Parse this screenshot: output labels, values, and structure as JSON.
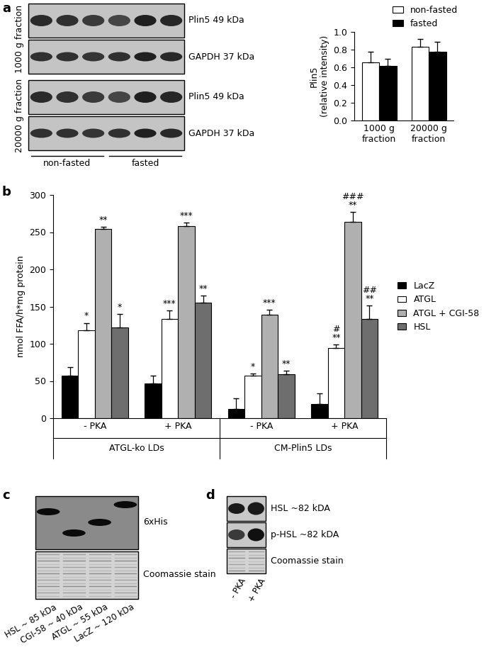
{
  "panel_labels": [
    "a",
    "b",
    "c",
    "d"
  ],
  "chart_data": [
    {
      "type": "bar",
      "categories": [
        "1000 g fraction",
        "20000 g fraction"
      ],
      "y_label": "Plin5\n(relative intensity)",
      "ylim": [
        0,
        1.0
      ],
      "yticks": [
        {
          "value": 0,
          "label": "0.0"
        },
        {
          "value": 0.2,
          "label": "0.2"
        },
        {
          "value": 0.4,
          "label": "0.4"
        },
        {
          "value": 0.6,
          "label": "0.6"
        },
        {
          "value": 0.8,
          "label": "0.8"
        },
        {
          "value": 1.0,
          "label": "1.0"
        }
      ],
      "legend": "upper right",
      "series": [
        {
          "name": "non-fasted",
          "color": "#ffffff",
          "values": [
            0.66,
            0.83
          ],
          "errors": [
            0.12,
            0.09
          ]
        },
        {
          "name": "fasted",
          "color": "#000000",
          "values": [
            0.62,
            0.78
          ],
          "errors": [
            0.08,
            0.11
          ]
        }
      ]
    },
    {
      "type": "bar",
      "categories": [
        "- PKA",
        "+ PKA",
        "- PKA",
        "+ PKA"
      ],
      "group_labels": [
        "ATGL-ko LDs",
        "ATGL-ko LDs",
        "CM-Plin5 LDs",
        "CM-Plin5 LDs"
      ],
      "y_label": "nmol FFA/h*mg protein",
      "ylim": [
        0,
        300
      ],
      "yticks": [
        0,
        50,
        100,
        150,
        200,
        250,
        300
      ],
      "legend": "right",
      "series": [
        {
          "name": "LacZ",
          "color": "#000000",
          "values": [
            57,
            47,
            12,
            19
          ],
          "errors": [
            12,
            10,
            15,
            14
          ],
          "annotations": [
            null,
            null,
            null,
            null
          ]
        },
        {
          "name": "ATGL",
          "color": "#ffffff",
          "values": [
            118,
            133,
            57,
            94
          ],
          "errors": [
            10,
            12,
            3,
            5
          ],
          "annotations": [
            "*",
            "***",
            "*",
            "#\n**"
          ]
        },
        {
          "name": "ATGL + CGI-58",
          "color": "#b0b0b0",
          "values": [
            254,
            258,
            139,
            264
          ],
          "errors": [
            3,
            5,
            7,
            13
          ],
          "annotations": [
            "**",
            "***",
            "***",
            "###\n**"
          ]
        },
        {
          "name": "HSL",
          "color": "#6e6e6e",
          "values": [
            122,
            155,
            59,
            133
          ],
          "errors": [
            18,
            10,
            5,
            18
          ],
          "annotations": [
            "*",
            "**",
            "**",
            "##\n**"
          ]
        }
      ]
    }
  ],
  "blots": {
    "a": {
      "fractions": [
        {
          "label": "1000 g fraction",
          "rows": [
            "Plin5 49 kDa",
            "GAPDH 37 kDa"
          ]
        },
        {
          "label": "20000 g fraction",
          "rows": [
            "Plin5 49 kDa",
            "GAPDH 37 kDa"
          ]
        }
      ],
      "lane_groups": [
        "non-fasted",
        "fasted"
      ]
    },
    "c": {
      "rows": [
        "6xHis",
        "Coomassie stain"
      ],
      "lanes": [
        "HSL ~ 85 kDa",
        "CGI-58 ~ 40 kDa",
        "ATGL ~ 55 kDa",
        "LacZ ~ 120 kDa"
      ]
    },
    "d": {
      "rows": [
        "HSL ~82 kDA",
        "p-HSL ~82 kDA",
        "Coomassie stain"
      ],
      "lanes": [
        "- PKA",
        "+ PKA"
      ]
    }
  }
}
